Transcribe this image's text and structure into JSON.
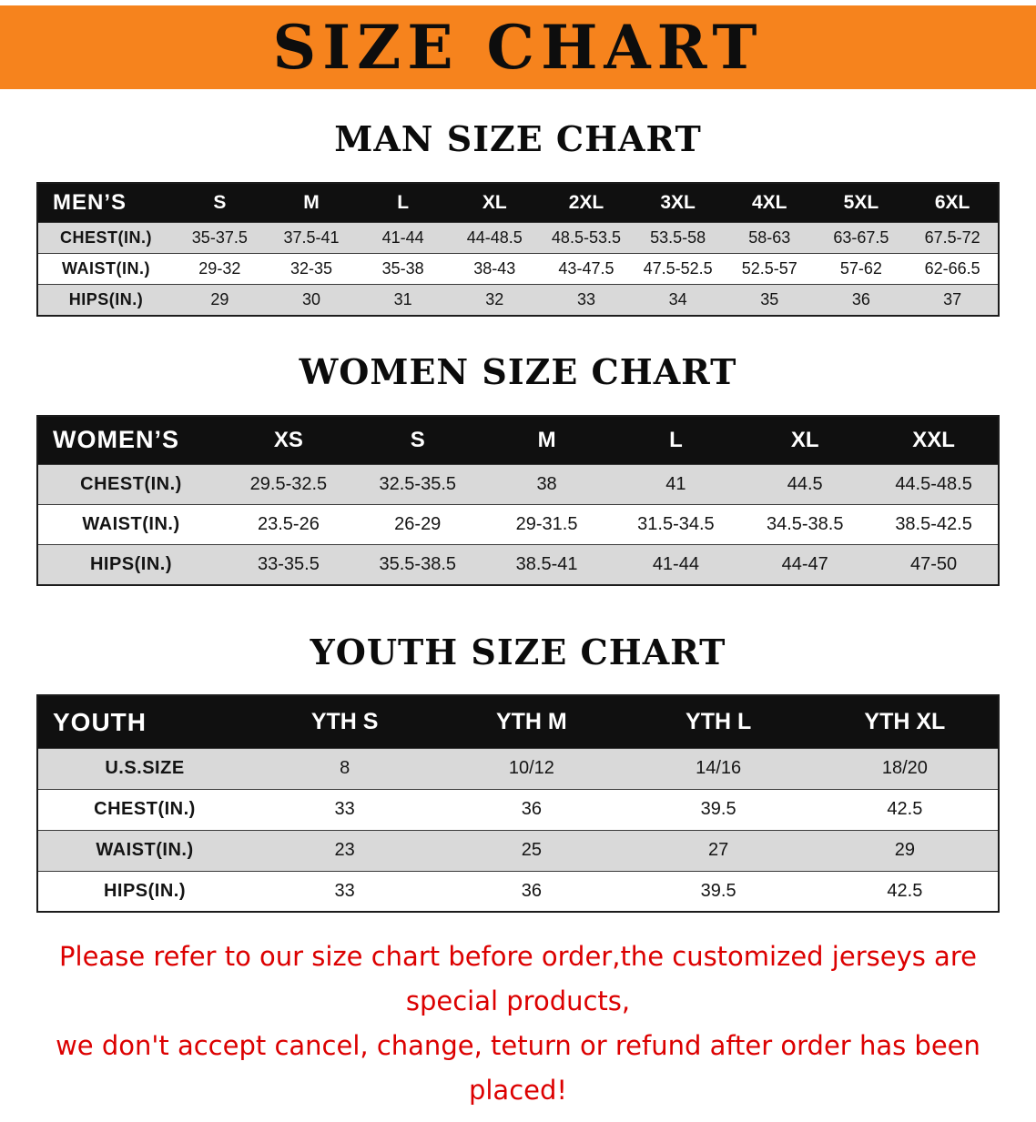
{
  "banner": {
    "title": "SIZE CHART"
  },
  "colors": {
    "banner_bg": "#F6831D",
    "table_header_bg": "#101010",
    "row_shade": "#D9D9D9",
    "disclaimer_text": "#DC0000"
  },
  "sections": [
    {
      "heading": "MAN SIZE CHART",
      "table": {
        "header_label": "MEN’S",
        "columns": [
          "S",
          "M",
          "L",
          "XL",
          "2XL",
          "3XL",
          "4XL",
          "5XL",
          "6XL"
        ],
        "rows": [
          {
            "label": "CHEST(IN.)",
            "values": [
              "35-37.5",
              "37.5-41",
              "41-44",
              "44-48.5",
              "48.5-53.5",
              "53.5-58",
              "58-63",
              "63-67.5",
              "67.5-72"
            ]
          },
          {
            "label": "WAIST(IN.)",
            "values": [
              "29-32",
              "32-35",
              "35-38",
              "38-43",
              "43-47.5",
              "47.5-52.5",
              "52.5-57",
              "57-62",
              "62-66.5"
            ]
          },
          {
            "label": "HIPS(IN.)",
            "values": [
              "29",
              "30",
              "31",
              "32",
              "33",
              "34",
              "35",
              "36",
              "37"
            ]
          }
        ]
      }
    },
    {
      "heading": "WOMEN SIZE CHART",
      "table": {
        "header_label": "WOMEN’S",
        "columns": [
          "XS",
          "S",
          "M",
          "L",
          "XL",
          "XXL"
        ],
        "rows": [
          {
            "label": "CHEST(IN.)",
            "values": [
              "29.5-32.5",
              "32.5-35.5",
              "38",
              "41",
              "44.5",
              "44.5-48.5"
            ]
          },
          {
            "label": "WAIST(IN.)",
            "values": [
              "23.5-26",
              "26-29",
              "29-31.5",
              "31.5-34.5",
              "34.5-38.5",
              "38.5-42.5"
            ]
          },
          {
            "label": "HIPS(IN.)",
            "values": [
              "33-35.5",
              "35.5-38.5",
              "38.5-41",
              "41-44",
              "44-47",
              "47-50"
            ]
          }
        ]
      }
    },
    {
      "heading": "YOUTH SIZE CHART",
      "table": {
        "header_label": "YOUTH",
        "columns": [
          "YTH S",
          "YTH M",
          "YTH L",
          "YTH XL"
        ],
        "rows": [
          {
            "label": "U.S.SIZE",
            "values": [
              "8",
              "10/12",
              "14/16",
              "18/20"
            ]
          },
          {
            "label": "CHEST(IN.)",
            "values": [
              "33",
              "36",
              "39.5",
              "42.5"
            ]
          },
          {
            "label": "WAIST(IN.)",
            "values": [
              "23",
              "25",
              "27",
              "29"
            ]
          },
          {
            "label": "HIPS(IN.)",
            "values": [
              "33",
              "36",
              "39.5",
              "42.5"
            ]
          }
        ]
      }
    }
  ],
  "disclaimer": {
    "line1": "Please refer to our size chart before order,the customized jerseys are special products,",
    "line2": "we don't accept cancel, change, teturn or refund after order has been placed!"
  }
}
